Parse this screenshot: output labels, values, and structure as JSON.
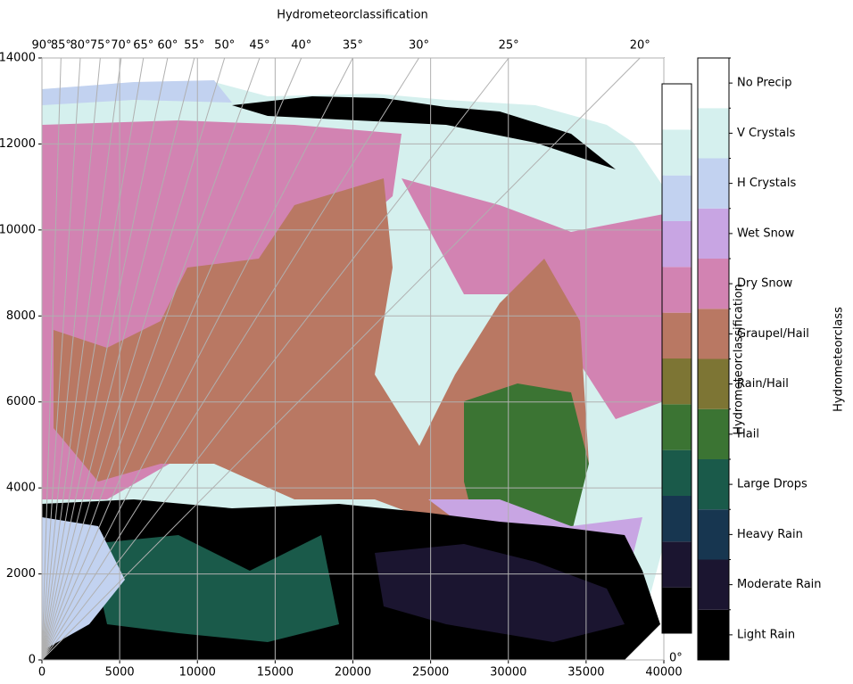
{
  "chart_data": {
    "type": "rhi",
    "title": "Hydrometeorclassification",
    "xlim": [
      0,
      40000
    ],
    "xticks": [
      0,
      5000,
      10000,
      15000,
      20000,
      25000,
      30000,
      35000,
      40000
    ],
    "ylim": [
      0,
      14000
    ],
    "yticks": [
      0,
      2000,
      4000,
      6000,
      8000,
      10000,
      12000,
      14000
    ],
    "grid": true,
    "elevation_ticks": [
      {
        "value": 90,
        "label": "90°"
      },
      {
        "value": 85,
        "label": "85°"
      },
      {
        "value": 80,
        "label": "80°"
      },
      {
        "value": 75,
        "label": "75°"
      },
      {
        "value": 70,
        "label": "70°"
      },
      {
        "value": 65,
        "label": "65°"
      },
      {
        "value": 60,
        "label": "60°"
      },
      {
        "value": 55,
        "label": "55°"
      },
      {
        "value": 50,
        "label": "50°"
      },
      {
        "value": 45,
        "label": "45°"
      },
      {
        "value": 40,
        "label": "40°"
      },
      {
        "value": 35,
        "label": "35°"
      },
      {
        "value": 30,
        "label": "30°"
      },
      {
        "value": 25,
        "label": "25°"
      },
      {
        "value": 20,
        "label": "20°"
      },
      {
        "value": 0,
        "label": "0°"
      }
    ],
    "colorbar_label": "Hydrometeorclass",
    "colorbar2_label": "Hydrometeorclassification",
    "classes": [
      {
        "name": "Light Rain",
        "color": "#000000"
      },
      {
        "name": "Moderate Rain",
        "color": "#1b1530"
      },
      {
        "name": "Heavy Rain",
        "color": "#173650"
      },
      {
        "name": "Large Drops",
        "color": "#1a5a4a"
      },
      {
        "name": "Hail",
        "color": "#3b7433"
      },
      {
        "name": "Rain/Hail",
        "color": "#7d7534"
      },
      {
        "name": "Graupel/Hail",
        "color": "#b97863"
      },
      {
        "name": "Dry Snow",
        "color": "#d283b2"
      },
      {
        "name": "Wet Snow",
        "color": "#c8a5e3"
      },
      {
        "name": "H Crystals",
        "color": "#c2d2f0"
      },
      {
        "name": "V Crystals",
        "color": "#d5f0ee"
      },
      {
        "name": "No Precip",
        "color": "#ffffff"
      }
    ]
  }
}
